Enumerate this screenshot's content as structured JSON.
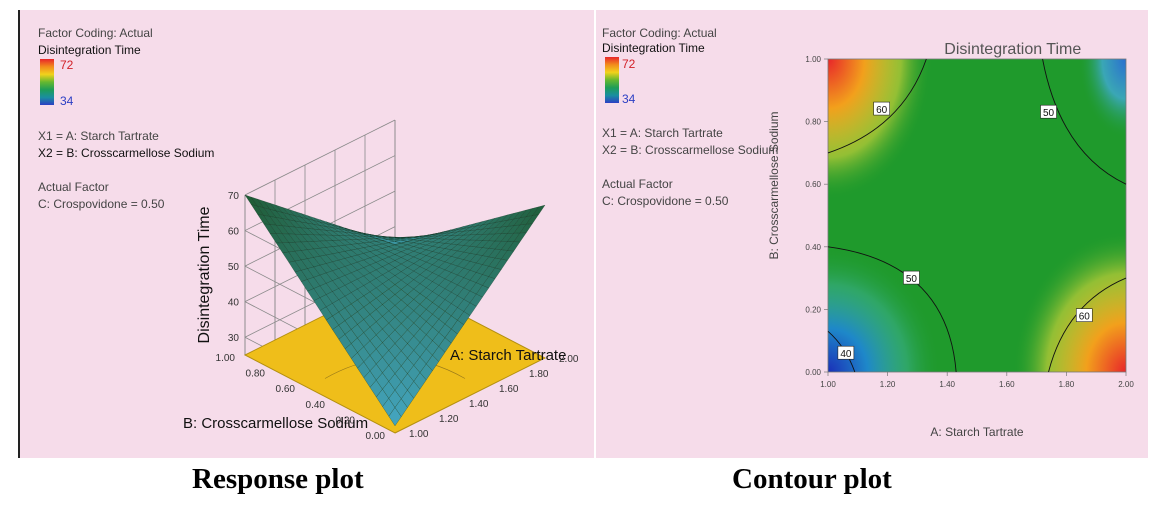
{
  "left_panel": {
    "factor_coding": "Factor Coding: Actual",
    "response_name": "Disintegration Time",
    "legend_max": "72",
    "legend_min": "34",
    "x1_label": "X1 = A: Starch Tartrate",
    "x2_label": "X2 = B: Crosscarmellose Sodium",
    "actual_factor_heading": "Actual Factor",
    "actual_factor_value": "C: Crospovidone = 0.50"
  },
  "right_panel": {
    "factor_coding": "Factor Coding: Actual",
    "response_name": "Disintegration Time",
    "legend_max": "72",
    "legend_min": "34",
    "x1_label": "X1 = A: Starch Tartrate",
    "x2_label": "X2 = B: Crosscarmellose Sodium",
    "actual_factor_heading": "Actual Factor",
    "actual_factor_value": "C: Crospovidone = 0.50"
  },
  "captions": {
    "left": "Response plot",
    "right": "Contour plot"
  },
  "colors": {
    "panel_bg": "#f6dcea",
    "floor": "#efbe1a",
    "contour_green": "#1f9a2c",
    "high": "#e8252a",
    "low": "#2c3fc4"
  },
  "chart_data": [
    {
      "type": "surface",
      "xlabel": "A: Starch Tartrate",
      "ylabel": "B: Crosscarmellose Sodium",
      "zlabel": "Disintegration Time",
      "x_ticks": [
        "1.00",
        "1.20",
        "1.40",
        "1.60",
        "1.80",
        "2.00"
      ],
      "y_ticks": [
        "0.00",
        "0.20",
        "0.40",
        "0.60",
        "0.80",
        "1.00"
      ],
      "z_ticks": [
        "30",
        "40",
        "50",
        "60",
        "70"
      ],
      "xlim": [
        1.0,
        2.0
      ],
      "ylim": [
        0.0,
        1.0
      ],
      "zlim": [
        25,
        70
      ],
      "grid": true,
      "corner_values": [
        {
          "x": 1.0,
          "y": 0.0,
          "z": 27
        },
        {
          "x": 2.0,
          "y": 0.0,
          "z": 68
        },
        {
          "x": 1.0,
          "y": 1.0,
          "z": 70
        },
        {
          "x": 2.0,
          "y": 1.0,
          "z": 35
        }
      ]
    },
    {
      "type": "contour",
      "title": "Disintegration Time",
      "xlabel": "A: Starch Tartrate",
      "ylabel": "B: Crosscarmellose Sodium",
      "x_ticks": [
        "1.00",
        "1.20",
        "1.40",
        "1.60",
        "1.80",
        "2.00"
      ],
      "y_ticks": [
        "0.00",
        "0.20",
        "0.40",
        "0.60",
        "0.80",
        "1.00"
      ],
      "xlim": [
        1.0,
        2.0
      ],
      "ylim": [
        0.0,
        1.0
      ],
      "contour_labels": [
        {
          "text": "60",
          "x": 1.18,
          "y": 0.84
        },
        {
          "text": "50",
          "x": 1.74,
          "y": 0.83
        },
        {
          "text": "50",
          "x": 1.28,
          "y": 0.3
        },
        {
          "text": "60",
          "x": 1.86,
          "y": 0.18
        },
        {
          "text": "40",
          "x": 1.06,
          "y": 0.06
        }
      ]
    }
  ]
}
